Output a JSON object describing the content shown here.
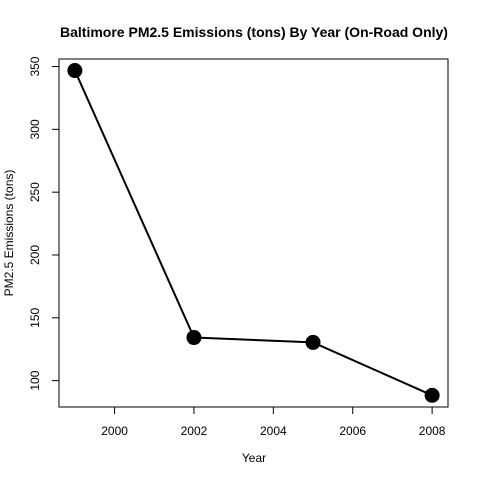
{
  "chart_data": {
    "type": "line",
    "title": "Baltimore PM2.5 Emissions (tons) By Year (On-Road Only)",
    "xlabel": "Year",
    "ylabel": "PM2.5 Emissions (tons)",
    "x": [
      1999,
      2002,
      2005,
      2008
    ],
    "y": [
      346.8,
      134.3,
      130.4,
      88.3
    ],
    "xlim": [
      1998.6,
      2008.4
    ],
    "ylim": [
      79.0,
      356.0
    ],
    "xticks": [
      2000,
      2002,
      2004,
      2006,
      2008
    ],
    "yticks": [
      100,
      150,
      200,
      250,
      300,
      350
    ],
    "xtick_labels": [
      "2000",
      "2002",
      "2004",
      "2006",
      "2008"
    ],
    "ytick_labels": [
      "100",
      "150",
      "200",
      "250",
      "300",
      "350"
    ],
    "line_color": "#000000",
    "marker_color": "#000000",
    "grid": false
  }
}
